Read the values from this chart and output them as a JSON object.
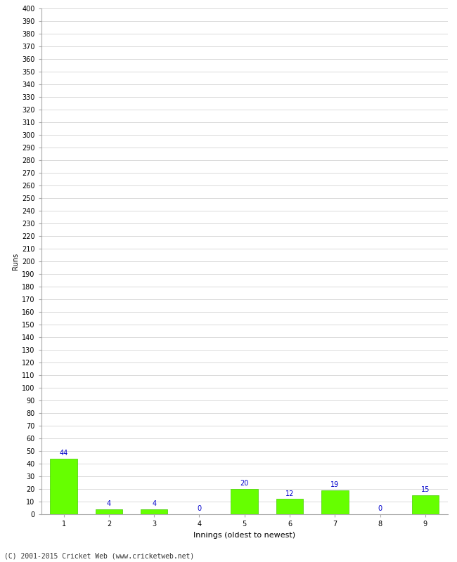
{
  "xlabel": "Innings (oldest to newest)",
  "ylabel": "Runs",
  "categories": [
    1,
    2,
    3,
    4,
    5,
    6,
    7,
    8,
    9
  ],
  "values": [
    44,
    4,
    4,
    0,
    20,
    12,
    19,
    0,
    15
  ],
  "bar_color": "#66ff00",
  "bar_edge_color": "#44cc00",
  "label_color": "#0000cc",
  "ylim": [
    0,
    400
  ],
  "ytick_step": 10,
  "background_color": "#ffffff",
  "grid_color": "#cccccc",
  "footer": "(C) 2001-2015 Cricket Web (www.cricketweb.net)",
  "label_fontsize": 7,
  "tick_fontsize": 7,
  "ylabel_fontsize": 7,
  "xlabel_fontsize": 8,
  "footer_fontsize": 7
}
